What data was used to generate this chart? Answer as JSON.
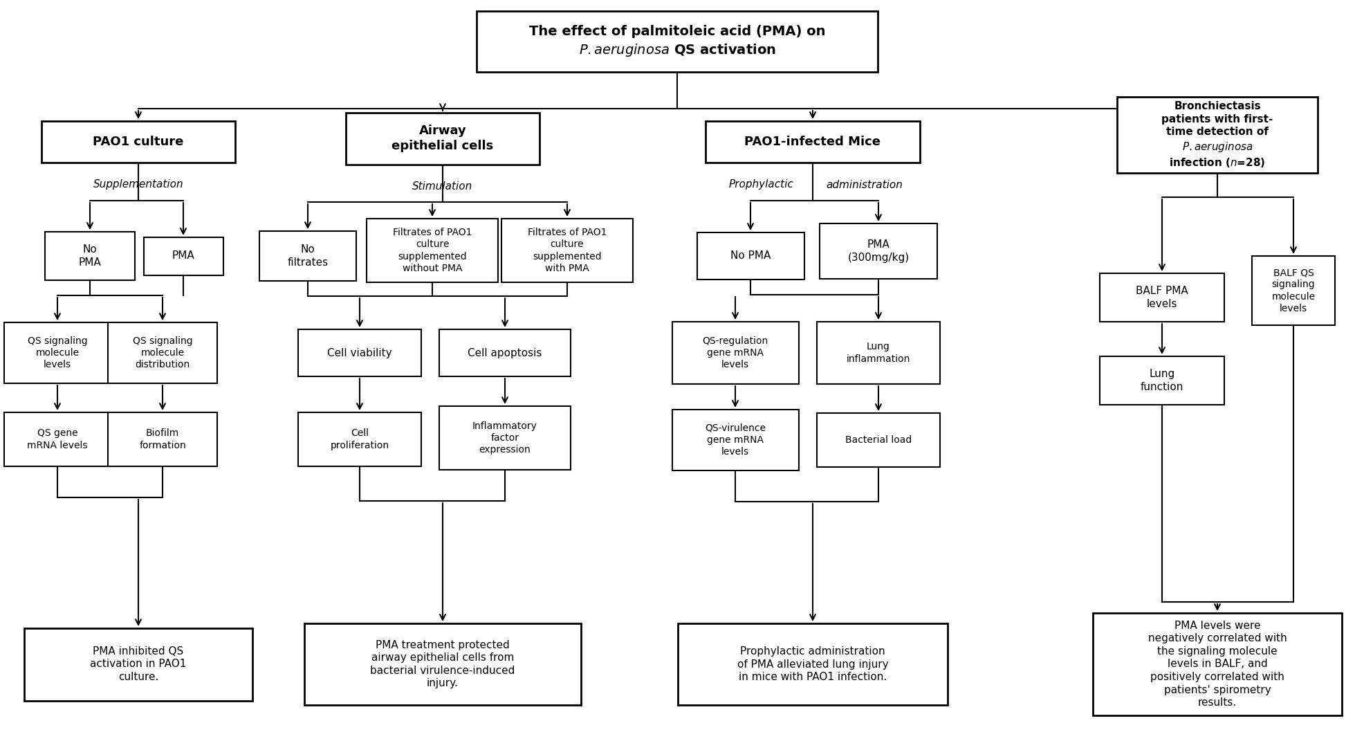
{
  "bg_color": "#ffffff",
  "lw_thin": 1.5,
  "lw_thick": 2.0,
  "arrow_mutation_scale": 14,
  "title_text": "The effect of palmitoleic acid (PMA) on\n$\\it{P. aeruginosa}$ QS activation",
  "title_bold": true,
  "pao1_culture_text": "PAO1 culture",
  "airway_text": "Airway\nepithelial cells",
  "mice_text": "PAO1-infected Mice",
  "bronch_text": "Bronchiectasis\npatients with first-\ntime detection of\n$\\it{P. aeruginosa}$\ninfection ($n$=28)",
  "suppl_text": "Supplementation",
  "stim_text": "Stimulation",
  "prophyl_text": "Prophylactic",
  "admin_text": "administration",
  "no_pma1_text": "No\nPMA",
  "pma1_text": "PMA",
  "no_filt_text": "No\nfiltrates",
  "filt_nopma_text": "Filtrates of PAO1\nculture\nsupplemented\nwithout PMA",
  "filt_pma_text": "Filtrates of PAO1\nculture\nsupplemented\nwith PMA",
  "no_pma_mice_text": "No PMA",
  "pma_mice_text": "PMA\n(300mg/kg)",
  "balf_pma_text": "BALF PMA\nlevels",
  "balf_qs_text": "BALF QS\nsignaling\nmolecule\nlevels",
  "lung_func_text": "Lung\nfunction",
  "qs_sig1_text": "QS signaling\nmolecule\nlevels",
  "qs_sig2_text": "QS signaling\nmolecule\ndistribution",
  "qs_gene_text": "QS gene\nmRNA levels",
  "biofilm_text": "Biofilm\nformation",
  "cell_viab_text": "Cell viability",
  "cell_apop_text": "Cell apoptosis",
  "cell_prolif_text": "Cell\nproliferation",
  "inflam_text": "Inflammatory\nfactor\nexpression",
  "qs_reg_text": "QS-regulation\ngene mRNA\nlevels",
  "lung_inflam_text": "Lung\ninflammation",
  "qs_vir_text": "QS-virulence\ngene mRNA\nlevels",
  "bact_load_text": "Bacterial load",
  "conc1_text": "PMA inhibited QS\nactivation in PAO1\nculture.",
  "conc2_text": "PMA treatment protected\nairway epithelial cells from\nbacterial virulence-induced\ninjury.",
  "conc3_text": "Prophylactic administration\nof PMA alleviated lung injury\nin mice with PAO1 infection.",
  "conc4_text": "PMA levels were\nnegatively correlated with\nthe signaling molecule\nlevels in BALF, and\npositively correlated with\npatients' spirometry\nresults."
}
